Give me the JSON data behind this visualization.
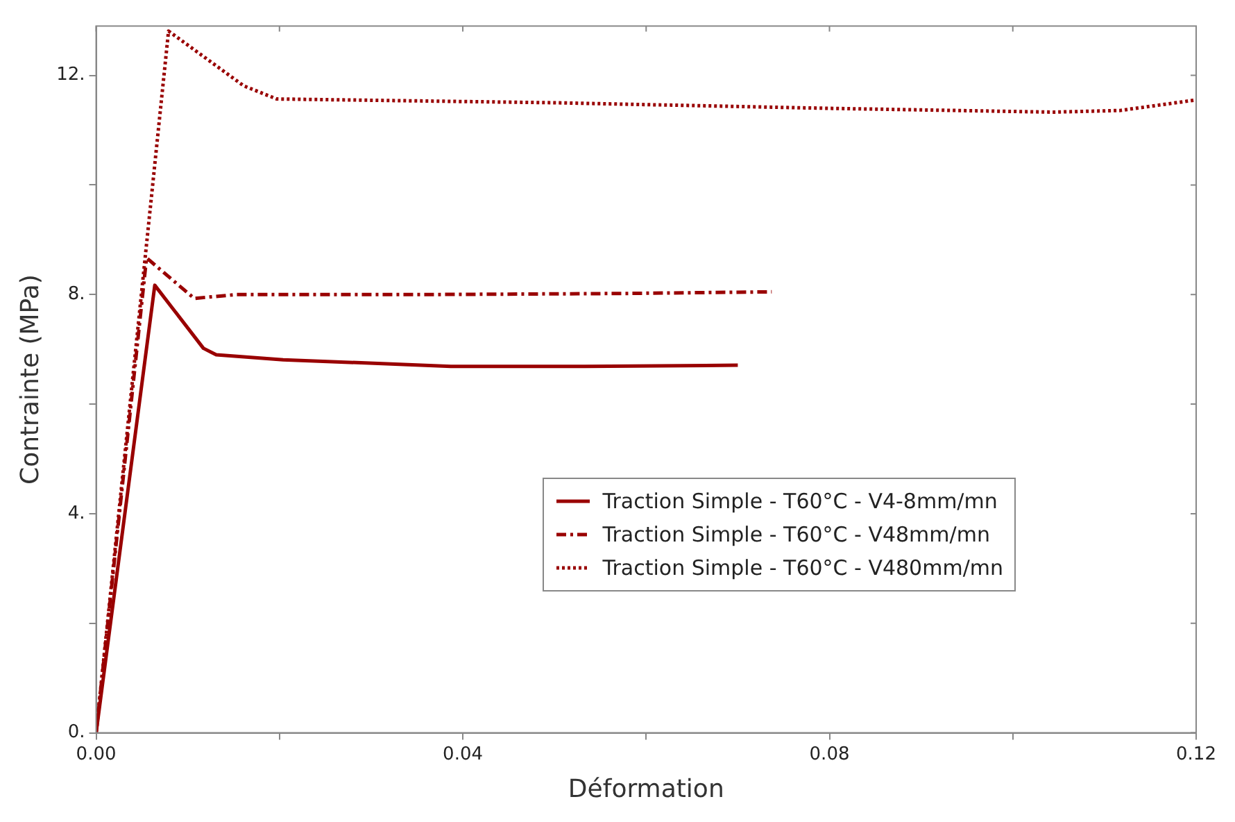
{
  "chart_data": {
    "type": "line",
    "xlabel": "Déformation",
    "ylabel": "Contrainte (MPa)",
    "xlim": [
      0,
      0.12
    ],
    "ylim": [
      0,
      12.9
    ],
    "xticks": [
      {
        "value": 0,
        "label": "0.00"
      },
      {
        "value": 0.02,
        "label": null
      },
      {
        "value": 0.04,
        "label": "0.04"
      },
      {
        "value": 0.06,
        "label": null
      },
      {
        "value": 0.08,
        "label": "0.08"
      },
      {
        "value": 0.1,
        "label": null
      },
      {
        "value": 0.12,
        "label": "0.12"
      }
    ],
    "yticks": [
      {
        "value": 0,
        "label": "0."
      },
      {
        "value": 2,
        "label": null
      },
      {
        "value": 4,
        "label": "4."
      },
      {
        "value": 6,
        "label": null
      },
      {
        "value": 8,
        "label": "8."
      },
      {
        "value": 10,
        "label": null
      },
      {
        "value": 12,
        "label": "12."
      }
    ],
    "grid": false,
    "legend": "right",
    "marker": "none",
    "series": [
      {
        "name": "Traction Simple - T60°C - V4-8mm/mn",
        "color": "#990000",
        "line_style": "solid",
        "x": [
          0,
          0.0064,
          0.0117,
          0.0131,
          0.0204,
          0.0387,
          0.0533,
          0.07
        ],
        "values": [
          0,
          8.17,
          7.02,
          6.9,
          6.81,
          6.69,
          6.69,
          6.71
        ]
      },
      {
        "name": "Traction Simple - T60°C - V48mm/mn",
        "color": "#990000",
        "line_style": "dashed",
        "x": [
          0,
          0.0055,
          0.0107,
          0.0153,
          0.0358,
          0.0577,
          0.0737
        ],
        "values": [
          0,
          8.67,
          7.93,
          8.0,
          8.0,
          8.02,
          8.05
        ]
      },
      {
        "name": "Traction Simple - T60°C - V480mm/mn",
        "color": "#990000",
        "line_style": "dotted",
        "x": [
          0,
          0.0079,
          0.0161,
          0.0197,
          0.0504,
          0.0796,
          0.1044,
          0.1117,
          0.1199
        ],
        "values": [
          0,
          12.81,
          11.81,
          11.57,
          11.5,
          11.4,
          11.33,
          11.36,
          11.55
        ]
      }
    ]
  }
}
